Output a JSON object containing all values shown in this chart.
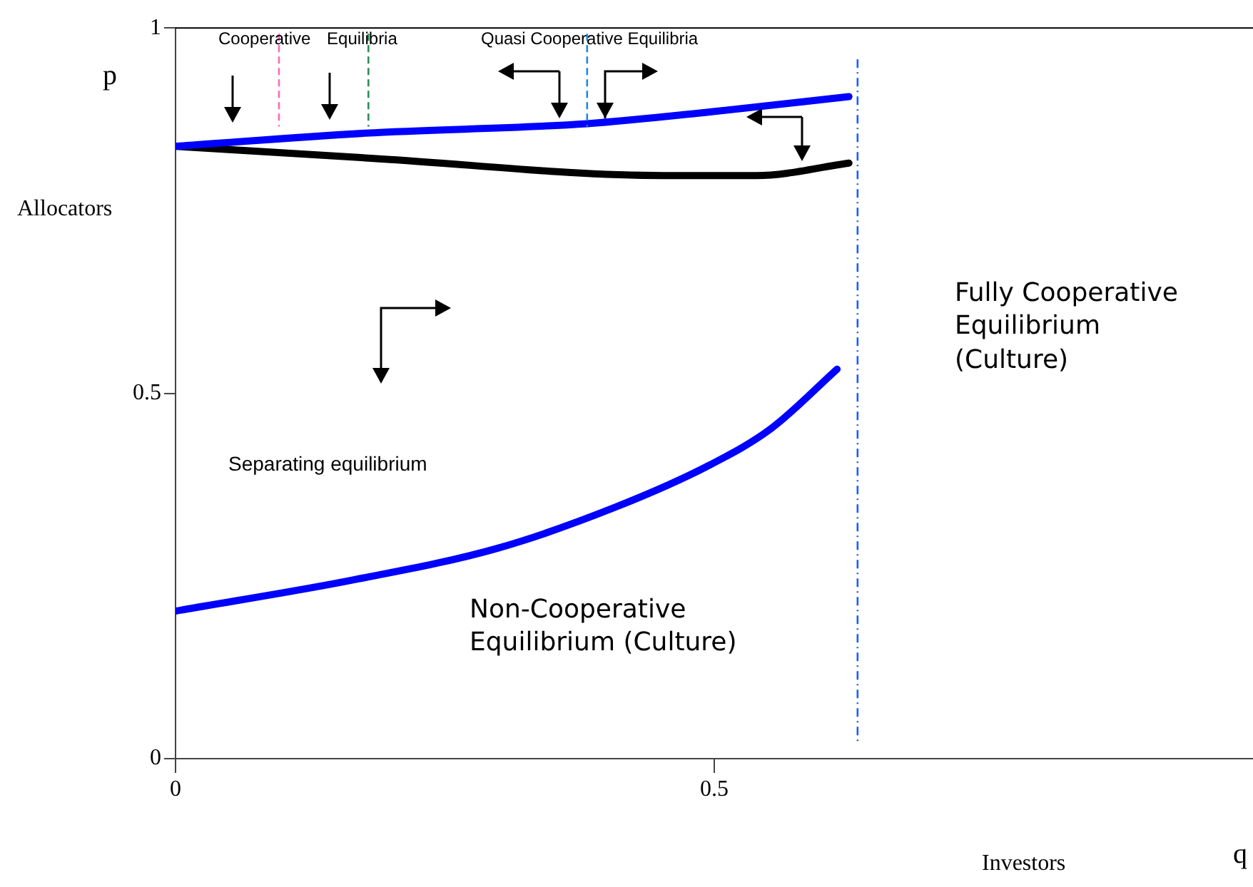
{
  "chart_data": {
    "type": "line",
    "xlabel": "Investors",
    "ylabel": "Allocators",
    "xlim": [
      0,
      1
    ],
    "ylim": [
      0,
      1
    ],
    "xticks": [
      0,
      0.5
    ],
    "yticks": [
      0,
      0.5,
      1
    ],
    "grid": false,
    "legend": false,
    "marker": "none",
    "line_style": "solid",
    "series": [
      {
        "color": "#0000ff",
        "x": [
          0,
          0.176,
          0.382,
          0.496,
          0.625
        ],
        "values": [
          0.838,
          0.856,
          0.869,
          0.885,
          0.906
        ]
      },
      {
        "color": "#000000",
        "x": [
          0,
          0.189,
          0.453,
          0.539,
          0.625
        ],
        "values": [
          0.838,
          0.821,
          0.798,
          0.798,
          0.815
        ]
      },
      {
        "color": "#0000ff",
        "x": [
          0,
          0.163,
          0.299,
          0.408,
          0.496,
          0.553,
          0.614
        ],
        "values": [
          0.202,
          0.244,
          0.288,
          0.344,
          0.402,
          0.452,
          0.533
        ]
      }
    ],
    "ref_lines": [
      {
        "axis": "x",
        "value": 0.096,
        "color": "#ff69b4",
        "line_style": "dashed"
      },
      {
        "axis": "x",
        "value": 0.179,
        "color": "#2e8b57",
        "line_style": "dashed"
      },
      {
        "axis": "x",
        "value": 0.382,
        "color": "#1e88e5",
        "line_style": "dashed"
      },
      {
        "axis": "x",
        "value": 0.633,
        "color": "#1a5cff",
        "line_style": "dotted"
      }
    ],
    "annotations": [
      "p",
      "q",
      "Cooperative Equilibria",
      "Quasi Cooperative Equilibria",
      "Fully Cooperative\nEquilibrium\n(Culture)",
      "Separating equilibrium",
      "Non-Cooperative\nEquilibrium (Culture)"
    ]
  }
}
